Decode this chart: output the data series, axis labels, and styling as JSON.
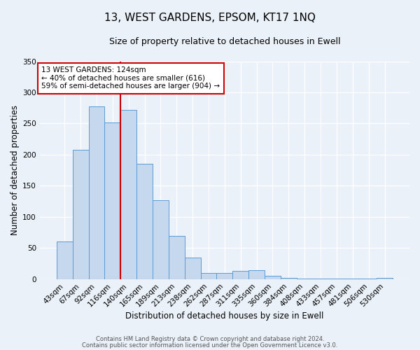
{
  "title": "13, WEST GARDENS, EPSOM, KT17 1NQ",
  "subtitle": "Size of property relative to detached houses in Ewell",
  "xlabel": "Distribution of detached houses by size in Ewell",
  "ylabel": "Number of detached properties",
  "bar_labels": [
    "43sqm",
    "67sqm",
    "92sqm",
    "116sqm",
    "140sqm",
    "165sqm",
    "189sqm",
    "213sqm",
    "238sqm",
    "262sqm",
    "287sqm",
    "311sqm",
    "335sqm",
    "360sqm",
    "384sqm",
    "408sqm",
    "433sqm",
    "457sqm",
    "481sqm",
    "506sqm",
    "530sqm"
  ],
  "bar_values": [
    60,
    208,
    278,
    252,
    272,
    185,
    127,
    69,
    34,
    10,
    10,
    13,
    14,
    5,
    2,
    1,
    1,
    1,
    1,
    1,
    2
  ],
  "bar_color": "#c5d8ed",
  "bar_edge_color": "#5b9bd5",
  "ylim": [
    0,
    350
  ],
  "annotation_text": "13 WEST GARDENS: 124sqm\n← 40% of detached houses are smaller (616)\n59% of semi-detached houses are larger (904) →",
  "annotation_box_color": "#ffffff",
  "annotation_box_edge": "#cc0000",
  "vline_color": "#cc0000",
  "vline_x": 3.5,
  "footer_line1": "Contains HM Land Registry data © Crown copyright and database right 2024.",
  "footer_line2": "Contains public sector information licensed under the Open Government Licence v3.0.",
  "background_color": "#eaf1f8",
  "grid_color": "#ffffff",
  "title_fontsize": 11,
  "subtitle_fontsize": 9,
  "axis_label_fontsize": 8.5,
  "tick_fontsize": 7.5,
  "footer_fontsize": 6,
  "annotation_fontsize": 7.5
}
